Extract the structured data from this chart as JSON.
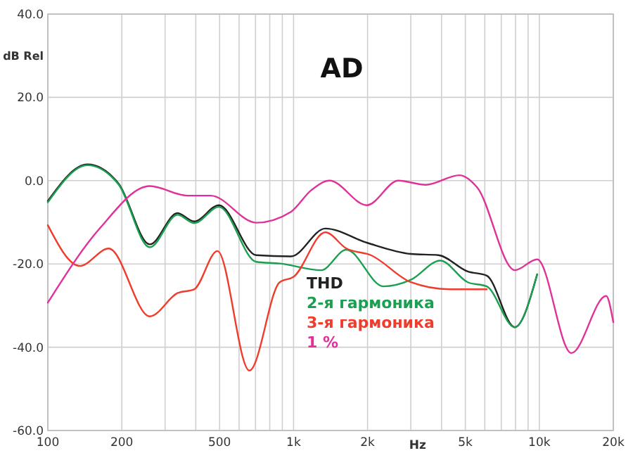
{
  "chart_data": {
    "type": "line",
    "title": "AD",
    "xlabel": "Hz",
    "ylabel": "dB Rel",
    "log": "x",
    "grid": true,
    "legend": "bottom",
    "line_style": "solid",
    "marker": "none",
    "xlim": [
      100,
      20000
    ],
    "ylim": [
      -60,
      40
    ],
    "xticks": [
      100,
      200,
      {
        "value": 300,
        "label": null
      },
      {
        "value": 400,
        "label": null
      },
      500,
      {
        "value": 600,
        "label": null
      },
      {
        "value": 700,
        "label": null
      },
      {
        "value": 800,
        "label": null
      },
      {
        "value": 900,
        "label": null
      },
      {
        "value": 1000,
        "label": "1k"
      },
      {
        "value": 2000,
        "label": "2k"
      },
      {
        "value": 3000,
        "label": null
      },
      {
        "value": 4000,
        "label": null
      },
      {
        "value": 5000,
        "label": "5k"
      },
      {
        "value": 6000,
        "label": null
      },
      {
        "value": 7000,
        "label": null
      },
      {
        "value": 8000,
        "label": null
      },
      {
        "value": 9000,
        "label": null
      },
      {
        "value": 10000,
        "label": "10k"
      },
      {
        "value": 20000,
        "label": "20k"
      }
    ],
    "yticks": [
      {
        "value": -60,
        "label": "-60.0"
      },
      {
        "value": -40,
        "label": "-40.0"
      },
      {
        "value": -20,
        "label": "-20.0"
      },
      {
        "value": 0,
        "label": "0.0"
      },
      {
        "value": 20,
        "label": "20.0"
      },
      {
        "value": 40,
        "label": "40.0"
      }
    ],
    "series": [
      {
        "name": "THD",
        "color": "#222222",
        "x": [
          100,
          145,
          194,
          260,
          337,
          394,
          497,
          705,
          975,
          1346,
          1986,
          3005,
          3885,
          5110,
          6110,
          7950,
          9800
        ],
        "values": [
          -4.9,
          3.9,
          -0.7,
          -15.3,
          -7.8,
          -9.8,
          -5.9,
          -17.9,
          -18.2,
          -11.5,
          -14.9,
          -17.6,
          -17.9,
          -21.8,
          -22.8,
          -35.2,
          -22.5
        ]
      },
      {
        "name": "2-я гармоника",
        "color": "#1aa050",
        "x": [
          100,
          145,
          194,
          260,
          337,
          394,
          497,
          705,
          878,
          1295,
          1640,
          2320,
          3005,
          3950,
          5110,
          6110,
          7950,
          9800
        ],
        "values": [
          -5.2,
          3.7,
          -0.9,
          -16,
          -8.2,
          -10.2,
          -6.3,
          -19.5,
          -19.9,
          -21.5,
          -16.6,
          -25.4,
          -23.8,
          -19.2,
          -24.4,
          -25.4,
          -35.2,
          -22.5
        ]
      },
      {
        "name": "3-я гармоника",
        "color": "#f03c2c",
        "x": [
          100,
          135,
          177,
          260,
          337,
          394,
          490,
          661,
          878,
          1000,
          1346,
          1640,
          2063,
          3005,
          4310,
          6110
        ],
        "values": [
          -10.7,
          -20.5,
          -16.3,
          -32.6,
          -27.0,
          -26.1,
          -16.9,
          -45.6,
          -24.4,
          -23.1,
          -12.4,
          -16.3,
          -17.9,
          -24.4,
          -26.1,
          -26.1
        ]
      },
      {
        "name": "1 %",
        "color": "#e0309a",
        "x": [
          100,
          163,
          260,
          370,
          460,
          705,
          975,
          1180,
          1400,
          1986,
          2670,
          3450,
          4730,
          5580,
          7950,
          9800,
          13500,
          18700,
          20000
        ],
        "values": [
          -29.3,
          -11.4,
          -1.3,
          -3.6,
          -3.6,
          -10.1,
          -7.5,
          -2.3,
          0,
          -5.9,
          0,
          -1.0,
          1.3,
          -1.6,
          -21.5,
          -18.9,
          -41.4,
          -27.7,
          -34
        ]
      }
    ]
  }
}
